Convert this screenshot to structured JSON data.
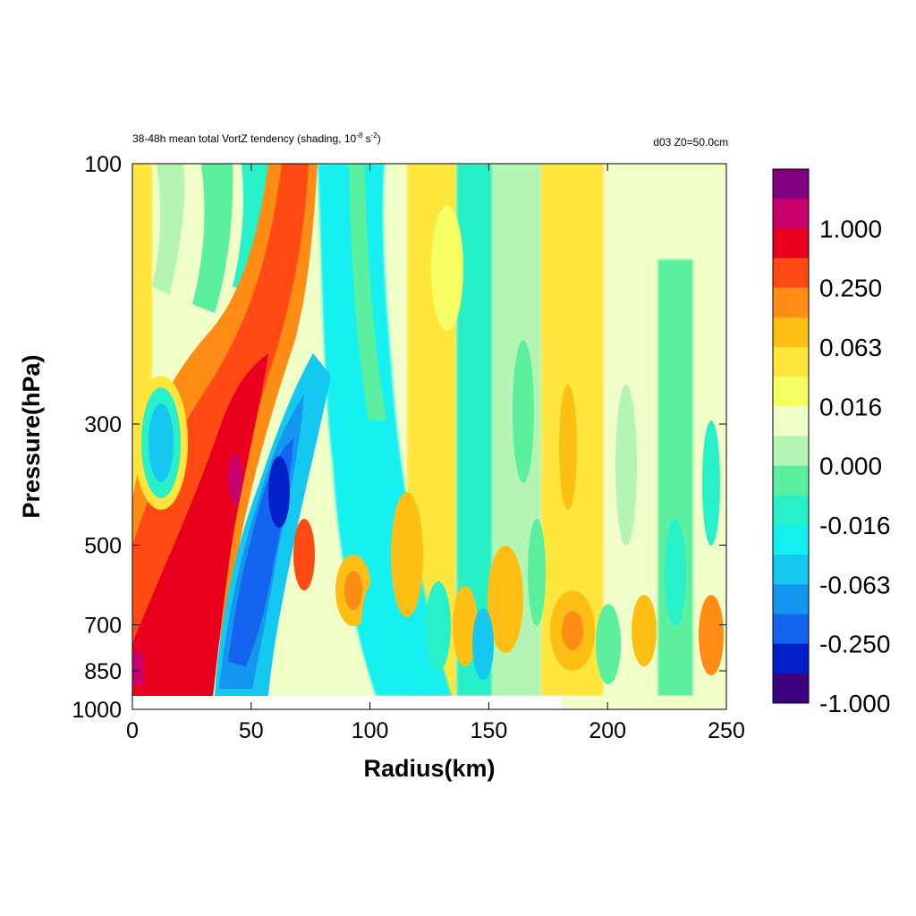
{
  "chart_data": {
    "type": "heatmap",
    "title": {
      "text": "38-48h mean total VortZ tendency  (shading, 10",
      "exponent_1": "-8",
      "mid": " s",
      "exponent_2": "-2",
      "suffix": ")"
    },
    "subtitle_right": "d03  Z0=50.0cm",
    "xlabel": "Radius(km)",
    "ylabel": "Pressure(hPa)",
    "xlim": [
      0,
      250
    ],
    "ylim": [
      1000,
      100
    ],
    "yscale": "log",
    "x_ticks": [
      "0",
      "50",
      "100",
      "150",
      "200",
      "250"
    ],
    "x_tick_values": [
      0,
      50,
      100,
      150,
      200,
      250
    ],
    "y_ticks": [
      "100",
      "300",
      "500",
      "700",
      "850",
      "1000"
    ],
    "y_tick_values": [
      100,
      300,
      500,
      700,
      850,
      1000
    ],
    "colorbar": {
      "labels": [
        "1.000",
        "0.250",
        "0.063",
        "0.016",
        "0.000",
        "-0.016",
        "-0.063",
        "-0.250",
        "-1.000"
      ],
      "colors": [
        "#800080",
        "#c8006e",
        "#e8001e",
        "#ff4a14",
        "#ff8c14",
        "#ffbe14",
        "#ffe63c",
        "#f5ff64",
        "#f0ffc8",
        "#b4f5b4",
        "#5af0a0",
        "#28f0c8",
        "#14f0f0",
        "#14c8f0",
        "#1496f0",
        "#1464f0",
        "#0020c8",
        "#3c0080"
      ]
    },
    "features": [
      {
        "name": "eyewall positive band (inner core, tilted outward with height)",
        "x": [
          20,
          70
        ],
        "p": [
          1000,
          120
        ],
        "sign": "positive"
      },
      {
        "name": "negative band outside eyewall",
        "x": [
          40,
          75
        ],
        "p": [
          900,
          350
        ],
        "sign": "negative"
      },
      {
        "name": "boundary-layer positive maximum",
        "x": [
          0,
          10
        ],
        "p": [
          900,
          800
        ],
        "sign": "positive"
      },
      {
        "name": "mid-level negative cell",
        "x": [
          5,
          20
        ],
        "p": [
          420,
          280
        ],
        "sign": "negative"
      }
    ]
  }
}
